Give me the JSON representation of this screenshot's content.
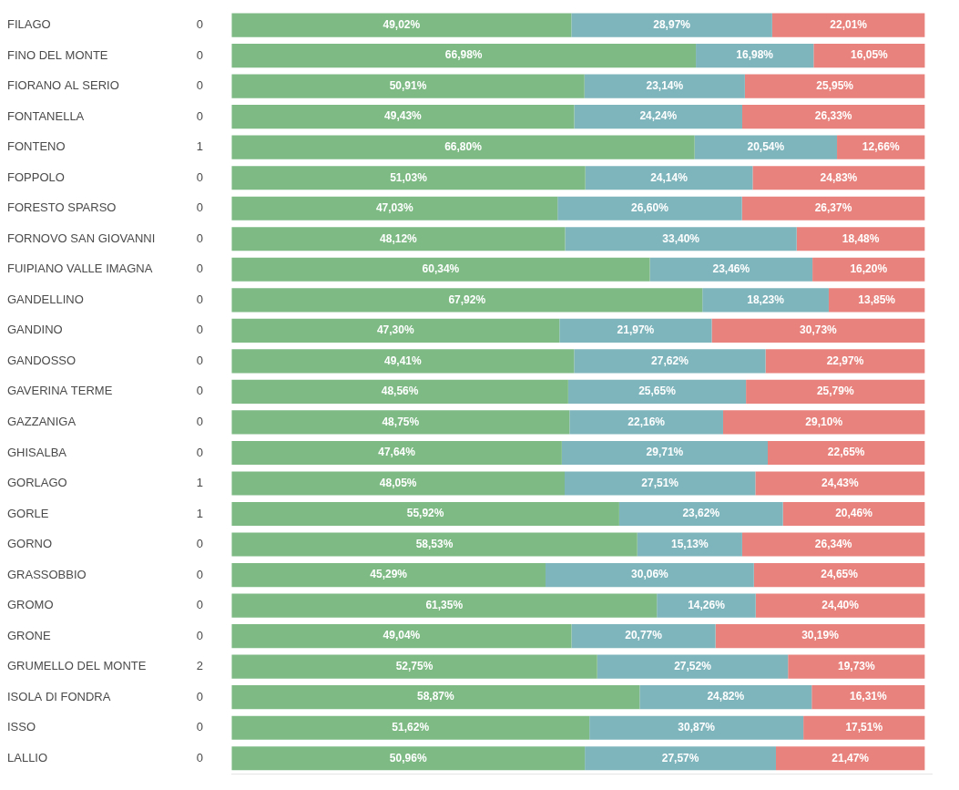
{
  "chart_data": {
    "type": "bar",
    "orientation": "horizontal",
    "stacked": true,
    "data_labels": true,
    "grid": false,
    "tick_labels": "y",
    "categories": [
      "FILAGO",
      "FINO DEL MONTE",
      "FIORANO AL SERIO",
      "FONTANELLA",
      "FONTENO",
      "FOPPOLO",
      "FORESTO SPARSO",
      "FORNOVO SAN GIOVANNI",
      "FUIPIANO VALLE IMAGNA",
      "GANDELLINO",
      "GANDINO",
      "GANDOSSO",
      "GAVERINA TERME",
      "GAZZANIGA",
      "GHISALBA",
      "GORLAGO",
      "GORLE",
      "GORNO",
      "GRASSOBBIO",
      "GROMO",
      "GRONE",
      "GRUMELLO DEL MONTE",
      "ISOLA DI FONDRA",
      "ISSO",
      "LALLIO"
    ],
    "cases": [
      0,
      0,
      0,
      0,
      1,
      0,
      0,
      0,
      0,
      0,
      0,
      0,
      0,
      0,
      0,
      1,
      1,
      0,
      0,
      0,
      0,
      2,
      0,
      0,
      0
    ],
    "series": [
      {
        "color": "#7dba84",
        "values": [
          49.02,
          66.98,
          50.91,
          49.43,
          66.8,
          51.03,
          47.03,
          48.12,
          60.34,
          67.92,
          47.3,
          49.41,
          48.56,
          48.75,
          47.64,
          48.05,
          55.92,
          58.53,
          45.29,
          61.35,
          49.04,
          52.75,
          58.87,
          51.62,
          50.96
        ],
        "value_labels": [
          "49,02%",
          "66,98%",
          "50,91%",
          "49,43%",
          "66,80%",
          "51,03%",
          "47,03%",
          "48,12%",
          "60,34%",
          "67,92%",
          "47,30%",
          "49,41%",
          "48,56%",
          "48,75%",
          "47,64%",
          "48,05%",
          "55,92%",
          "58,53%",
          "45,29%",
          "61,35%",
          "49,04%",
          "52,75%",
          "58,87%",
          "51,62%",
          "50,96%"
        ]
      },
      {
        "color": "#7eb5bc",
        "values": [
          28.97,
          16.98,
          23.14,
          24.24,
          20.54,
          24.14,
          26.6,
          33.4,
          23.46,
          18.23,
          21.97,
          27.62,
          25.65,
          22.16,
          29.71,
          27.51,
          23.62,
          15.13,
          30.06,
          14.26,
          20.77,
          27.52,
          24.82,
          30.87,
          27.57
        ],
        "value_labels": [
          "28,97%",
          "16,98%",
          "23,14%",
          "24,24%",
          "20,54%",
          "24,14%",
          "26,60%",
          "33,40%",
          "23,46%",
          "18,23%",
          "21,97%",
          "27,62%",
          "25,65%",
          "22,16%",
          "29,71%",
          "27,51%",
          "23,62%",
          "15,13%",
          "30,06%",
          "14,26%",
          "20,77%",
          "27,52%",
          "24,82%",
          "30,87%",
          "27,57%"
        ]
      },
      {
        "color": "#e8827c",
        "values": [
          22.01,
          16.05,
          25.95,
          26.33,
          12.66,
          24.83,
          26.37,
          18.48,
          16.2,
          13.85,
          30.73,
          22.97,
          25.79,
          29.1,
          22.65,
          24.43,
          20.46,
          26.34,
          24.65,
          24.4,
          30.19,
          19.73,
          16.31,
          17.51,
          21.47
        ],
        "value_labels": [
          "22,01%",
          "16,05%",
          "25,95%",
          "26,33%",
          "12,66%",
          "24,83%",
          "26,37%",
          "18,48%",
          "16,20%",
          "13,85%",
          "30,73%",
          "22,97%",
          "25,79%",
          "29,10%",
          "22,65%",
          "24,43%",
          "20,46%",
          "26,34%",
          "24,65%",
          "24,40%",
          "30,19%",
          "19,73%",
          "16,31%",
          "17,51%",
          "21,47%"
        ]
      }
    ],
    "xlim": [
      0,
      101
    ]
  }
}
